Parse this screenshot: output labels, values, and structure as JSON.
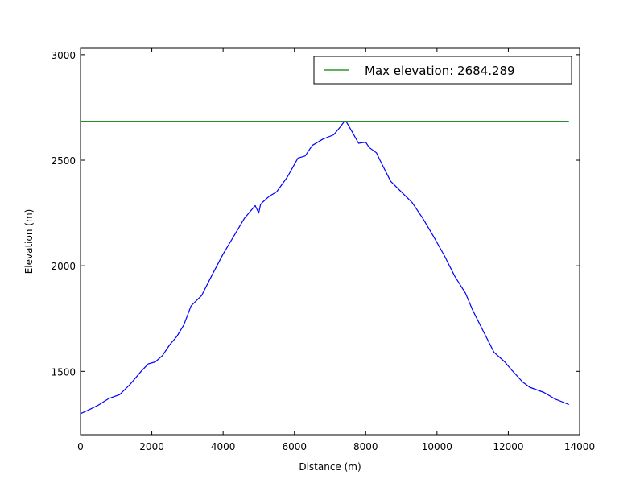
{
  "chart_data": {
    "type": "line",
    "title": "",
    "xlabel": "Distance (m)",
    "ylabel": "Elevation (m)",
    "xlim": [
      0,
      14000
    ],
    "ylim": [
      1200,
      3030
    ],
    "xticks": [
      0,
      2000,
      4000,
      6000,
      8000,
      10000,
      12000,
      14000
    ],
    "yticks": [
      1500,
      2000,
      2500,
      3000
    ],
    "grid": false,
    "legend": {
      "position": "top-right",
      "entries": [
        "Max elevation: 2684.289"
      ]
    },
    "colors": {
      "profile": "#0000ff",
      "max_line": "#008000"
    },
    "series": [
      {
        "name": "",
        "x": [
          0,
          200,
          500,
          800,
          1100,
          1400,
          1700,
          1900,
          2100,
          2300,
          2500,
          2700,
          2900,
          3100,
          3400,
          3700,
          4000,
          4300,
          4600,
          4900,
          5000,
          5050,
          5100,
          5300,
          5500,
          5800,
          6100,
          6300,
          6500,
          6800,
          7100,
          7300,
          7400,
          7450,
          7600,
          7800,
          8000,
          8100,
          8300,
          8400,
          8700,
          9000,
          9300,
          9600,
          9900,
          10200,
          10500,
          10800,
          11000,
          11300,
          11600,
          11900,
          12100,
          12400,
          12600,
          13000,
          13300,
          13700
        ],
        "y": [
          1300,
          1315,
          1340,
          1372,
          1390,
          1440,
          1500,
          1535,
          1545,
          1575,
          1625,
          1665,
          1720,
          1810,
          1860,
          1960,
          2055,
          2140,
          2225,
          2285,
          2250,
          2290,
          2300,
          2330,
          2350,
          2420,
          2510,
          2520,
          2570,
          2600,
          2620,
          2660,
          2684,
          2684,
          2640,
          2580,
          2585,
          2560,
          2535,
          2500,
          2400,
          2350,
          2300,
          2225,
          2140,
          2050,
          1950,
          1870,
          1790,
          1690,
          1590,
          1545,
          1505,
          1450,
          1425,
          1400,
          1370,
          1343
        ]
      },
      {
        "name": "Max elevation: 2684.289",
        "x": [
          0,
          13700
        ],
        "y": [
          2684.289,
          2684.289
        ]
      }
    ]
  }
}
